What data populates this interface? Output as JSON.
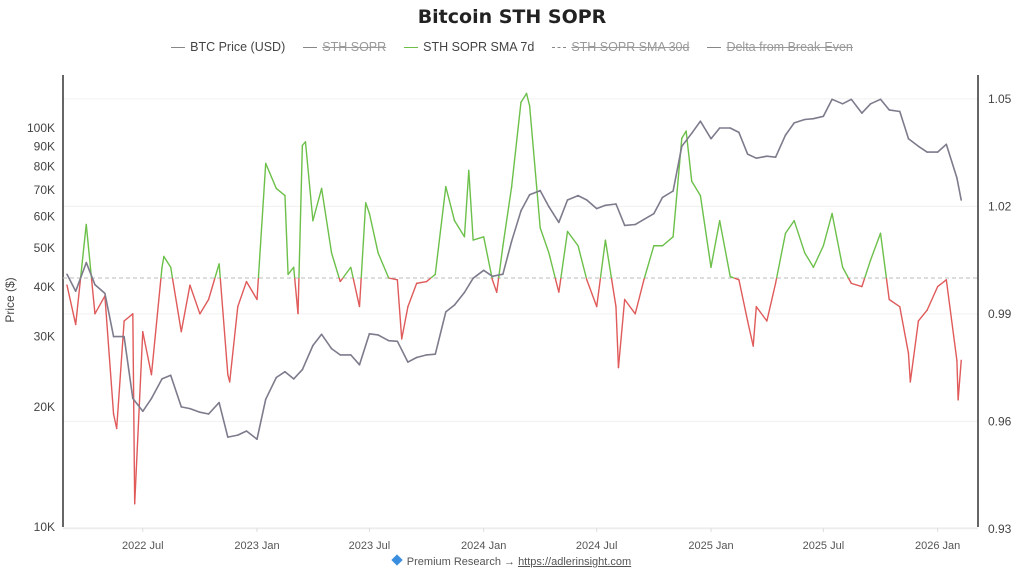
{
  "chart_data": {
    "type": "line",
    "title": "Bitcoin STH SOPR",
    "legend": {
      "placement": "top",
      "items": [
        {
          "label": "BTC Price (USD)",
          "color": "#7d7b8c",
          "hidden": false,
          "style": "solid"
        },
        {
          "label": "STH SOPR",
          "color": "#999999",
          "hidden": true,
          "style": "solid"
        },
        {
          "label": "STH SOPR SMA 7d",
          "color": "#6cc04a",
          "hidden": false,
          "style": "solid"
        },
        {
          "label": "STH SOPR SMA 30d",
          "color": "#999999",
          "hidden": true,
          "style": "dashed"
        },
        {
          "label": "Delta from Break-Even",
          "color": "#7d7b8c",
          "hidden": true,
          "style": "solid"
        }
      ]
    },
    "y_left": {
      "label": "Price ($)",
      "scale": "log",
      "range": [
        10000,
        136000
      ],
      "ticks": [
        {
          "v": 10000,
          "t": "10K"
        },
        {
          "v": 20000,
          "t": "20K"
        },
        {
          "v": 30000,
          "t": "30K"
        },
        {
          "v": 40000,
          "t": "40K"
        },
        {
          "v": 50000,
          "t": "50K"
        },
        {
          "v": 60000,
          "t": "60K"
        },
        {
          "v": 70000,
          "t": "70K"
        },
        {
          "v": 80000,
          "t": "80K"
        },
        {
          "v": 90000,
          "t": "90K"
        },
        {
          "v": 100000,
          "t": "100K"
        }
      ]
    },
    "y_right": {
      "scale": "linear",
      "range": [
        0.93,
        1.056
      ],
      "ticks": [
        {
          "v": 0.93,
          "t": "0.93"
        },
        {
          "v": 0.96,
          "t": "0.96"
        },
        {
          "v": 0.99,
          "t": "0.99"
        },
        {
          "v": 1.02,
          "t": "1.02"
        },
        {
          "v": 1.05,
          "t": "1.05"
        }
      ]
    },
    "x_axis": {
      "range": [
        "2022-03-01",
        "2026-02-08"
      ],
      "ticks": [
        {
          "d": "2022-07-01",
          "t": "2022 Jul"
        },
        {
          "d": "2023-01-01",
          "t": "2023 Jan"
        },
        {
          "d": "2023-07-01",
          "t": "2023 Jul"
        },
        {
          "d": "2024-01-01",
          "t": "2024 Jan"
        },
        {
          "d": "2024-07-01",
          "t": "2024 Jul"
        },
        {
          "d": "2025-01-01",
          "t": "2025 Jan"
        },
        {
          "d": "2025-07-01",
          "t": "2025 Jul"
        },
        {
          "d": "2026-01-01",
          "t": "2026 Jan"
        }
      ]
    },
    "break_even": 1.0,
    "grid": true,
    "colors": {
      "above": "#6cc04a",
      "below": "#e05a5a",
      "price": "#7d7b8c",
      "break_even": "#bbbbbb"
    },
    "series": [
      {
        "name": "BTC Price (USD)",
        "axis": "left",
        "points": [
          [
            "2022-03-01",
            43000
          ],
          [
            "2022-03-15",
            39000
          ],
          [
            "2022-04-01",
            46000
          ],
          [
            "2022-04-15",
            40500
          ],
          [
            "2022-05-01",
            38500
          ],
          [
            "2022-05-15",
            30000
          ],
          [
            "2022-06-01",
            30000
          ],
          [
            "2022-06-15",
            21000
          ],
          [
            "2022-07-01",
            19500
          ],
          [
            "2022-07-15",
            21000
          ],
          [
            "2022-08-01",
            23500
          ],
          [
            "2022-08-15",
            24000
          ],
          [
            "2022-09-01",
            20000
          ],
          [
            "2022-09-15",
            19800
          ],
          [
            "2022-10-01",
            19400
          ],
          [
            "2022-10-15",
            19200
          ],
          [
            "2022-11-01",
            20500
          ],
          [
            "2022-11-15",
            16800
          ],
          [
            "2022-12-01",
            17000
          ],
          [
            "2022-12-15",
            17400
          ],
          [
            "2023-01-01",
            16600
          ],
          [
            "2023-01-15",
            20900
          ],
          [
            "2023-02-01",
            23700
          ],
          [
            "2023-02-15",
            24500
          ],
          [
            "2023-03-01",
            23500
          ],
          [
            "2023-03-15",
            24800
          ],
          [
            "2023-04-01",
            28500
          ],
          [
            "2023-04-15",
            30400
          ],
          [
            "2023-05-01",
            28000
          ],
          [
            "2023-05-15",
            27000
          ],
          [
            "2023-06-01",
            27000
          ],
          [
            "2023-06-15",
            25500
          ],
          [
            "2023-07-01",
            30500
          ],
          [
            "2023-07-15",
            30300
          ],
          [
            "2023-08-01",
            29300
          ],
          [
            "2023-08-15",
            29200
          ],
          [
            "2023-09-01",
            25900
          ],
          [
            "2023-09-15",
            26600
          ],
          [
            "2023-10-01",
            27000
          ],
          [
            "2023-10-15",
            27100
          ],
          [
            "2023-11-01",
            34600
          ],
          [
            "2023-11-15",
            36000
          ],
          [
            "2023-12-01",
            38700
          ],
          [
            "2023-12-15",
            42000
          ],
          [
            "2024-01-01",
            44000
          ],
          [
            "2024-01-15",
            42500
          ],
          [
            "2024-02-01",
            43000
          ],
          [
            "2024-02-15",
            52000
          ],
          [
            "2024-03-01",
            62000
          ],
          [
            "2024-03-15",
            68000
          ],
          [
            "2024-04-01",
            69700
          ],
          [
            "2024-04-15",
            63500
          ],
          [
            "2024-05-01",
            58000
          ],
          [
            "2024-05-15",
            66000
          ],
          [
            "2024-06-01",
            67700
          ],
          [
            "2024-06-15",
            66000
          ],
          [
            "2024-07-01",
            62800
          ],
          [
            "2024-07-15",
            64000
          ],
          [
            "2024-08-01",
            64500
          ],
          [
            "2024-08-15",
            57000
          ],
          [
            "2024-09-01",
            57300
          ],
          [
            "2024-09-15",
            59000
          ],
          [
            "2024-10-01",
            61000
          ],
          [
            "2024-10-15",
            67000
          ],
          [
            "2024-11-01",
            69500
          ],
          [
            "2024-11-15",
            90000
          ],
          [
            "2024-12-01",
            97000
          ],
          [
            "2024-12-15",
            104000
          ],
          [
            "2025-01-01",
            94000
          ],
          [
            "2025-01-15",
            100000
          ],
          [
            "2025-02-01",
            100000
          ],
          [
            "2025-02-15",
            97500
          ],
          [
            "2025-03-01",
            86000
          ],
          [
            "2025-03-15",
            84000
          ],
          [
            "2025-04-01",
            85000
          ],
          [
            "2025-04-15",
            84500
          ],
          [
            "2025-05-01",
            96000
          ],
          [
            "2025-05-15",
            103000
          ],
          [
            "2025-06-01",
            105000
          ],
          [
            "2025-06-15",
            105500
          ],
          [
            "2025-07-01",
            107000
          ],
          [
            "2025-07-15",
            118000
          ],
          [
            "2025-08-01",
            115000
          ],
          [
            "2025-08-15",
            118000
          ],
          [
            "2025-09-01",
            109000
          ],
          [
            "2025-09-15",
            115000
          ],
          [
            "2025-10-01",
            118000
          ],
          [
            "2025-10-15",
            111000
          ],
          [
            "2025-11-01",
            110000
          ],
          [
            "2025-11-15",
            94000
          ],
          [
            "2025-12-01",
            90000
          ],
          [
            "2025-12-15",
            87000
          ],
          [
            "2026-01-01",
            87000
          ],
          [
            "2026-01-15",
            91000
          ],
          [
            "2026-02-01",
            75000
          ],
          [
            "2026-02-08",
            66000
          ]
        ]
      },
      {
        "name": "STH SOPR SMA 7d",
        "axis": "right",
        "points": [
          [
            "2022-03-01",
            0.998
          ],
          [
            "2022-03-15",
            0.987
          ],
          [
            "2022-04-01",
            1.015
          ],
          [
            "2022-04-15",
            0.99
          ],
          [
            "2022-05-01",
            0.995
          ],
          [
            "2022-05-15",
            0.962
          ],
          [
            "2022-05-20",
            0.958
          ],
          [
            "2022-06-01",
            0.988
          ],
          [
            "2022-06-15",
            0.99
          ],
          [
            "2022-06-18",
            0.937
          ],
          [
            "2022-07-01",
            0.985
          ],
          [
            "2022-07-15",
            0.973
          ],
          [
            "2022-08-01",
            1.003
          ],
          [
            "2022-08-04",
            1.006
          ],
          [
            "2022-08-15",
            1.003
          ],
          [
            "2022-09-01",
            0.985
          ],
          [
            "2022-09-15",
            0.998
          ],
          [
            "2022-10-01",
            0.99
          ],
          [
            "2022-10-15",
            0.994
          ],
          [
            "2022-11-01",
            1.004
          ],
          [
            "2022-11-15",
            0.973
          ],
          [
            "2022-11-18",
            0.971
          ],
          [
            "2022-12-01",
            0.992
          ],
          [
            "2022-12-15",
            0.999
          ],
          [
            "2023-01-01",
            0.994
          ],
          [
            "2023-01-15",
            1.032
          ],
          [
            "2023-02-01",
            1.025
          ],
          [
            "2023-02-15",
            1.023
          ],
          [
            "2023-02-20",
            1.001
          ],
          [
            "2023-03-01",
            1.003
          ],
          [
            "2023-03-08",
            0.99
          ],
          [
            "2023-03-15",
            1.037
          ],
          [
            "2023-03-20",
            1.038
          ],
          [
            "2023-04-01",
            1.016
          ],
          [
            "2023-04-15",
            1.025
          ],
          [
            "2023-05-01",
            1.007
          ],
          [
            "2023-05-15",
            0.999
          ],
          [
            "2023-06-01",
            1.003
          ],
          [
            "2023-06-15",
            0.992
          ],
          [
            "2023-06-25",
            1.021
          ],
          [
            "2023-07-01",
            1.018
          ],
          [
            "2023-07-15",
            1.007
          ],
          [
            "2023-08-01",
            1.0
          ],
          [
            "2023-08-15",
            0.9995
          ],
          [
            "2023-08-22",
            0.983
          ],
          [
            "2023-09-01",
            0.992
          ],
          [
            "2023-09-15",
            0.9985
          ],
          [
            "2023-10-01",
            0.999
          ],
          [
            "2023-10-15",
            1.001
          ],
          [
            "2023-11-01",
            1.0255
          ],
          [
            "2023-11-15",
            1.016
          ],
          [
            "2023-12-01",
            1.0115
          ],
          [
            "2023-12-08",
            1.03
          ],
          [
            "2023-12-15",
            1.0106
          ],
          [
            "2024-01-01",
            1.0115
          ],
          [
            "2024-01-15",
            0.9995
          ],
          [
            "2024-01-22",
            0.996
          ],
          [
            "2024-02-01",
            1.009
          ],
          [
            "2024-02-15",
            1.0255
          ],
          [
            "2024-03-01",
            1.049
          ],
          [
            "2024-03-10",
            1.0515
          ],
          [
            "2024-03-15",
            1.048
          ],
          [
            "2024-04-01",
            1.014
          ],
          [
            "2024-04-15",
            1.007
          ],
          [
            "2024-05-01",
            0.996
          ],
          [
            "2024-05-15",
            1.013
          ],
          [
            "2024-06-01",
            1.009
          ],
          [
            "2024-06-15",
            0.9995
          ],
          [
            "2024-07-01",
            0.992
          ],
          [
            "2024-07-15",
            1.0106
          ],
          [
            "2024-08-01",
            0.992
          ],
          [
            "2024-08-05",
            0.975
          ],
          [
            "2024-08-15",
            0.994
          ],
          [
            "2024-09-01",
            0.99
          ],
          [
            "2024-09-15",
            0.9995
          ],
          [
            "2024-10-01",
            1.009
          ],
          [
            "2024-10-15",
            1.009
          ],
          [
            "2024-11-01",
            1.0115
          ],
          [
            "2024-11-15",
            1.039
          ],
          [
            "2024-11-22",
            1.041
          ],
          [
            "2024-12-01",
            1.027
          ],
          [
            "2024-12-15",
            1.023
          ],
          [
            "2025-01-01",
            1.003
          ],
          [
            "2025-01-15",
            1.016
          ],
          [
            "2025-02-01",
            1.0004
          ],
          [
            "2025-02-15",
            0.9995
          ],
          [
            "2025-03-01",
            0.988
          ],
          [
            "2025-03-10",
            0.981
          ],
          [
            "2025-03-15",
            0.992
          ],
          [
            "2025-04-01",
            0.988
          ],
          [
            "2025-04-15",
            0.9985
          ],
          [
            "2025-05-01",
            1.0125
          ],
          [
            "2025-05-15",
            1.016
          ],
          [
            "2025-06-01",
            1.007
          ],
          [
            "2025-06-15",
            1.003
          ],
          [
            "2025-07-01",
            1.009
          ],
          [
            "2025-07-15",
            1.018
          ],
          [
            "2025-08-01",
            1.003
          ],
          [
            "2025-08-15",
            0.9985
          ],
          [
            "2025-09-01",
            0.9976
          ],
          [
            "2025-09-15",
            1.005
          ],
          [
            "2025-10-01",
            1.0125
          ],
          [
            "2025-10-15",
            0.994
          ],
          [
            "2025-11-01",
            0.992
          ],
          [
            "2025-11-15",
            0.979
          ],
          [
            "2025-11-18",
            0.971
          ],
          [
            "2025-12-01",
            0.988
          ],
          [
            "2025-12-15",
            0.991
          ],
          [
            "2026-01-01",
            0.9976
          ],
          [
            "2026-01-15",
            0.9995
          ],
          [
            "2026-02-01",
            0.977
          ],
          [
            "2026-02-03",
            0.966
          ],
          [
            "2026-02-08",
            0.977
          ]
        ]
      }
    ]
  },
  "footer": {
    "text": "Premium Research → ",
    "link": "https://adlerinsight.com",
    "icon": "diamond-icon"
  }
}
